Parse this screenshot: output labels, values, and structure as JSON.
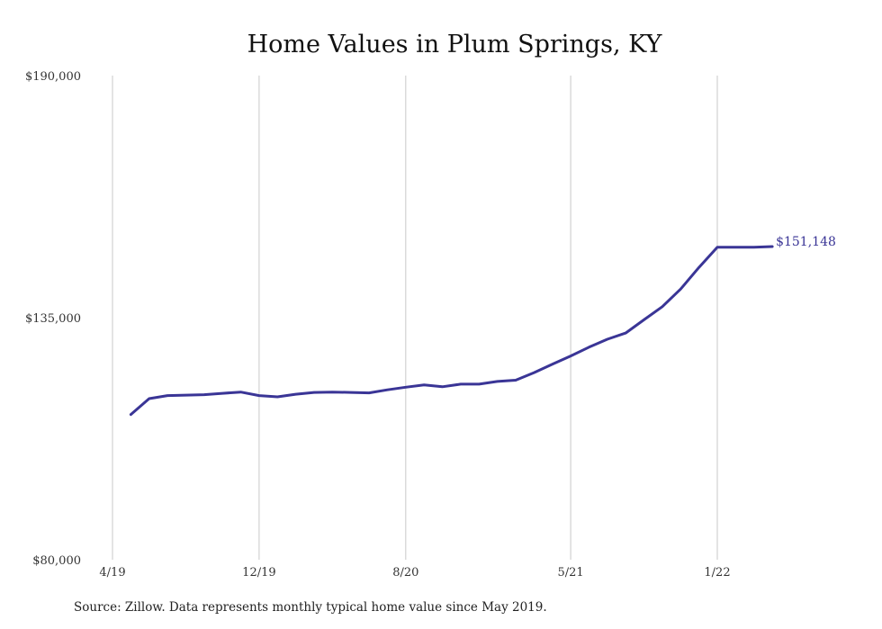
{
  "chart_data": {
    "type": "line",
    "title": "Home Values in Plum Springs, KY",
    "xlabel": "",
    "ylabel": "",
    "ylim": [
      80000,
      190000
    ],
    "y_ticks": [
      {
        "value": 80000,
        "label": "$80,000"
      },
      {
        "value": 135000,
        "label": "$135,000"
      },
      {
        "value": 190000,
        "label": "$190,000"
      }
    ],
    "x_ticks": [
      {
        "date": "2019-04",
        "label": "4/19"
      },
      {
        "date": "2019-12",
        "label": "12/19"
      },
      {
        "date": "2020-08",
        "label": "8/20"
      },
      {
        "date": "2021-05",
        "label": "5/21"
      },
      {
        "date": "2022-01",
        "label": "1/22"
      }
    ],
    "grid": "vertical",
    "legend": "none",
    "line_color": "#3a3596",
    "series": [
      {
        "x": [
          "2019-05",
          "2019-06",
          "2019-07",
          "2019-08",
          "2019-09",
          "2019-10",
          "2019-11",
          "2019-12",
          "2020-01",
          "2020-02",
          "2020-03",
          "2020-04",
          "2020-05",
          "2020-06",
          "2020-07",
          "2020-08",
          "2020-09",
          "2020-10",
          "2020-11",
          "2020-12",
          "2021-01",
          "2021-02",
          "2021-03",
          "2021-04",
          "2021-05",
          "2021-06",
          "2021-07",
          "2021-08",
          "2021-09",
          "2021-10",
          "2021-11",
          "2021-12",
          "2022-01",
          "2022-02",
          "2022-03",
          "2022-04"
        ],
        "values": [
          113000,
          116600,
          117300,
          117400,
          117500,
          117800,
          118100,
          117300,
          117000,
          117600,
          118000,
          118100,
          118000,
          117900,
          118600,
          119200,
          119700,
          119300,
          119900,
          119900,
          120500,
          120800,
          122500,
          124400,
          126300,
          128300,
          130100,
          131500,
          134500,
          137500,
          141500,
          146400,
          151000,
          151000,
          151000,
          151148
        ]
      }
    ],
    "end_label": "$151,148",
    "source": "Source: Zillow. Data represents monthly typical home value since May 2019."
  }
}
